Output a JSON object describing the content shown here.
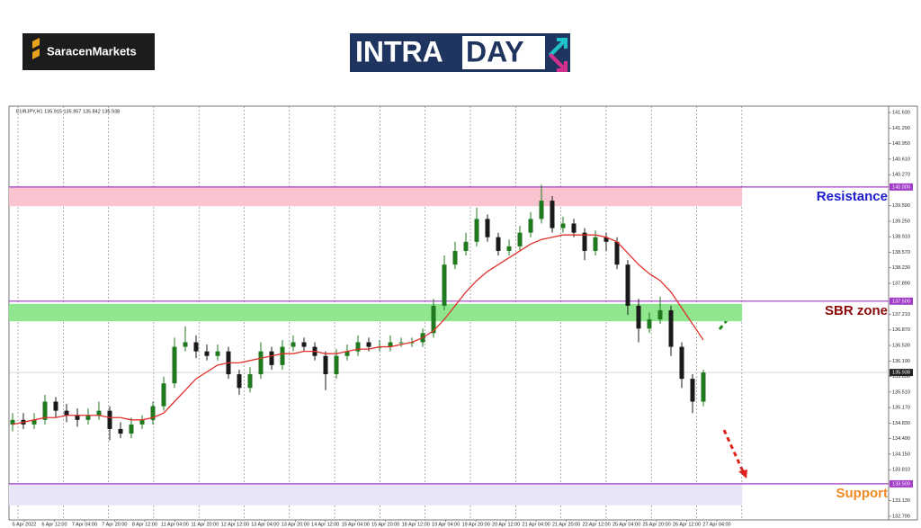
{
  "header": {
    "brand": "SaracenMarkets",
    "banner_left": "INTRA",
    "banner_right": "DAY"
  },
  "chart_data": {
    "type": "candlestick",
    "title": "EURJPY,H1 135.915 135.957 135.842 135.938",
    "color_up": "#1f7a1f",
    "color_down": "#1a1a1a",
    "open": [
      134.8,
      134.9,
      134.8,
      134.9,
      135.3,
      135.1,
      135.0,
      134.9,
      135.0,
      135.1,
      134.7,
      134.6,
      134.8,
      134.9,
      135.2,
      135.7,
      136.5,
      136.6,
      136.4,
      136.3,
      136.4,
      135.9,
      135.6,
      135.9,
      136.4,
      136.1,
      136.5,
      136.6,
      136.5,
      136.3,
      135.9,
      136.3,
      136.4,
      136.6,
      136.5,
      136.5,
      136.6,
      136.6,
      136.6,
      136.8,
      137.4,
      138.3,
      138.6,
      138.8,
      139.3,
      138.9,
      138.6,
      138.7,
      139.0,
      139.3,
      139.7,
      139.1,
      139.2,
      139.0,
      138.6,
      138.9,
      138.8,
      138.3,
      137.4,
      136.9,
      137.1,
      137.3,
      136.5,
      135.8,
      135.3
    ],
    "high": [
      135.05,
      135.05,
      135.05,
      135.45,
      135.4,
      135.25,
      135.15,
      135.15,
      135.3,
      135.2,
      134.85,
      134.95,
      135.0,
      135.3,
      135.85,
      136.7,
      136.95,
      136.75,
      136.55,
      136.55,
      136.5,
      136.0,
      136.05,
      136.6,
      136.5,
      136.65,
      136.75,
      136.7,
      136.6,
      136.4,
      136.45,
      136.55,
      136.75,
      136.7,
      136.65,
      136.75,
      136.7,
      136.7,
      136.9,
      137.55,
      138.5,
      138.8,
      139.0,
      139.55,
      139.4,
      139.0,
      138.85,
      139.15,
      139.45,
      140.05,
      139.8,
      139.35,
      139.3,
      139.1,
      139.05,
      139.0,
      138.9,
      138.4,
      137.55,
      137.25,
      137.6,
      137.4,
      136.6,
      135.9,
      136.0
    ],
    "low": [
      134.65,
      134.7,
      134.7,
      134.8,
      134.95,
      134.85,
      134.75,
      134.8,
      134.9,
      134.45,
      134.5,
      134.5,
      134.7,
      134.8,
      135.1,
      135.6,
      136.4,
      136.25,
      136.2,
      136.2,
      135.8,
      135.45,
      135.5,
      135.8,
      136.0,
      136.0,
      136.4,
      136.4,
      136.2,
      135.55,
      135.8,
      136.2,
      136.3,
      136.4,
      136.4,
      136.4,
      136.5,
      136.5,
      136.5,
      136.7,
      137.3,
      138.2,
      138.5,
      138.7,
      138.8,
      138.5,
      138.5,
      138.6,
      138.9,
      139.2,
      139.0,
      139.0,
      138.9,
      138.4,
      138.5,
      138.6,
      138.2,
      137.2,
      136.6,
      136.8,
      137.0,
      136.3,
      135.6,
      135.05,
      135.2
    ],
    "close": [
      134.9,
      134.8,
      134.9,
      135.3,
      135.1,
      135.0,
      134.9,
      135.0,
      135.1,
      134.7,
      134.6,
      134.8,
      134.9,
      135.2,
      135.7,
      136.5,
      136.6,
      136.4,
      136.3,
      136.4,
      135.9,
      135.6,
      135.9,
      136.4,
      136.1,
      136.5,
      136.6,
      136.5,
      136.3,
      135.9,
      136.3,
      136.4,
      136.6,
      136.5,
      136.5,
      136.6,
      136.6,
      136.6,
      136.8,
      137.4,
      138.3,
      138.6,
      138.8,
      139.3,
      138.9,
      138.6,
      138.7,
      139.0,
      139.3,
      139.7,
      139.1,
      139.2,
      139.0,
      138.6,
      138.9,
      138.8,
      138.3,
      137.4,
      136.9,
      137.1,
      137.3,
      136.5,
      135.8,
      135.3,
      135.938
    ],
    "ma": {
      "color": "#e0302a",
      "values": [
        134.8,
        134.85,
        134.9,
        134.95,
        134.95,
        135.0,
        135.0,
        135.0,
        135.0,
        134.95,
        134.95,
        134.9,
        134.9,
        134.95,
        135.05,
        135.3,
        135.55,
        135.8,
        135.95,
        136.1,
        136.15,
        136.15,
        136.2,
        136.25,
        136.3,
        136.35,
        136.35,
        136.4,
        136.4,
        136.35,
        136.35,
        136.4,
        136.45,
        136.45,
        136.5,
        136.5,
        136.55,
        136.6,
        136.7,
        136.85,
        137.1,
        137.4,
        137.7,
        137.95,
        138.15,
        138.3,
        138.45,
        138.6,
        138.75,
        138.85,
        138.9,
        138.95,
        138.95,
        138.95,
        138.95,
        138.9,
        138.8,
        138.55,
        138.3,
        138.1,
        137.95,
        137.7,
        137.35,
        137.0,
        136.65
      ]
    },
    "ylim": [
      132.71,
      141.77
    ],
    "yticks": [
      {
        "value": 141.63,
        "label": "141.630"
      },
      {
        "value": 141.29,
        "label": "141.290"
      },
      {
        "value": 140.95,
        "label": "140.950"
      },
      {
        "value": 140.61,
        "label": "140.610"
      },
      {
        "value": 140.27,
        "label": "140.270"
      },
      {
        "value": 139.59,
        "label": "139.590"
      },
      {
        "value": 139.25,
        "label": "139.250"
      },
      {
        "value": 138.91,
        "label": "138.910"
      },
      {
        "value": 138.57,
        "label": "138.570"
      },
      {
        "value": 138.23,
        "label": "138.230"
      },
      {
        "value": 137.89,
        "label": "137.890"
      },
      {
        "value": 137.21,
        "label": "137.210"
      },
      {
        "value": 136.87,
        "label": "136.870"
      },
      {
        "value": 136.53,
        "label": "136.530"
      },
      {
        "value": 136.19,
        "label": "136.190"
      },
      {
        "value": 135.85,
        "label": "135.850"
      },
      {
        "value": 135.51,
        "label": "135.510"
      },
      {
        "value": 135.17,
        "label": "135.170"
      },
      {
        "value": 134.83,
        "label": "134.830"
      },
      {
        "value": 134.49,
        "label": "134.490"
      },
      {
        "value": 134.15,
        "label": "134.150"
      },
      {
        "value": 133.81,
        "label": "133.810"
      },
      {
        "value": 133.13,
        "label": "133.130"
      },
      {
        "value": 132.79,
        "label": "132.790"
      }
    ],
    "x_labels": [
      "5 Apr 2022",
      "6 Apr 12:00",
      "7 Apr 04:00",
      "7 Apr 20:00",
      "8 Apr 12:00",
      "11 Apr 04:00",
      "11 Apr 20:00",
      "12 Apr 12:00",
      "13 Apr 04:00",
      "13 Apr 20:00",
      "14 Apr 12:00",
      "15 Apr 04:00",
      "15 Apr 20:00",
      "18 Apr 12:00",
      "19 Apr 04:00",
      "19 Apr 20:00",
      "20 Apr 12:00",
      "21 Apr 04:00",
      "21 Apr 20:00",
      "22 Apr 12:00",
      "25 Apr 04:00",
      "25 Apr 20:00",
      "26 Apr 12:00",
      "27 Apr 04:00"
    ],
    "levels": [
      {
        "label": "Resistance",
        "value": 140.0,
        "value_label": "140.000",
        "zone": [
          139.58,
          140.0
        ],
        "zone_color": "#f9c4cf",
        "line_color": "#a23cc8",
        "text_color": "#1c1ccc"
      },
      {
        "label": "SBR zone",
        "value": 137.5,
        "value_label": "137.500",
        "zone": [
          137.06,
          137.44
        ],
        "zone_color": "#8fe68f",
        "line_color": "#a23cc8",
        "text_color": "#8b0a0a"
      },
      {
        "label": "Support",
        "value": 133.5,
        "value_label": "133.500",
        "zone": [
          133.03,
          133.5
        ],
        "zone_color": "#e6e6f8",
        "line_color": "#a23cc8",
        "text_color": "#f08a24"
      }
    ],
    "last_price": {
      "value": 135.938,
      "label": "135.938"
    }
  }
}
